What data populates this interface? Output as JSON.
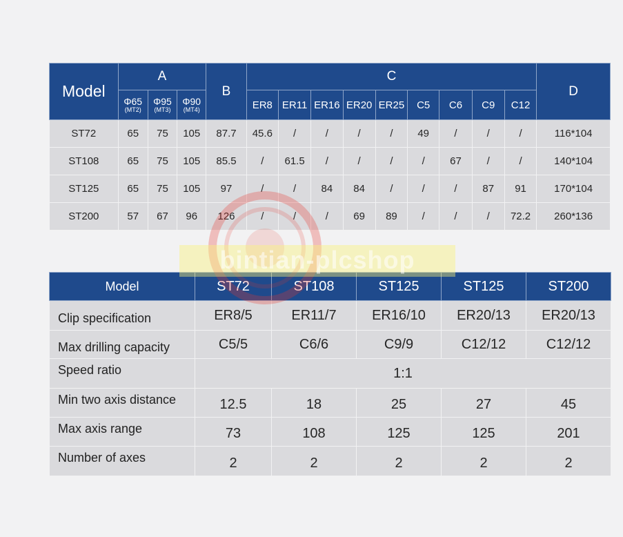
{
  "table1": {
    "model_header": "Model",
    "group_a": "A",
    "group_b": "B",
    "group_c": "C",
    "group_d": "D",
    "a_columns": [
      {
        "phi": "Φ65",
        "mt": "(MT2)"
      },
      {
        "phi": "Φ95",
        "mt": "(MT3)"
      },
      {
        "phi": "Φ90",
        "mt": "(MT4)"
      }
    ],
    "c_columns": [
      "ER8",
      "ER11",
      "ER16",
      "ER20",
      "ER25",
      "C5",
      "C6",
      "C9",
      "C12"
    ],
    "rows": [
      {
        "model": "ST72",
        "a": [
          "65",
          "75",
          "105"
        ],
        "b": "87.7",
        "c": [
          "45.6",
          "/",
          "/",
          "/",
          "/",
          "49",
          "/",
          "/",
          "/"
        ],
        "d": "116*104"
      },
      {
        "model": "ST108",
        "a": [
          "65",
          "75",
          "105"
        ],
        "b": "85.5",
        "c": [
          "/",
          "61.5",
          "/",
          "/",
          "/",
          "/",
          "67",
          "/",
          "/"
        ],
        "d": "140*104"
      },
      {
        "model": "ST125",
        "a": [
          "65",
          "75",
          "105"
        ],
        "b": "97",
        "c": [
          "/",
          "/",
          "84",
          "84",
          "/",
          "/",
          "/",
          "87",
          "91"
        ],
        "d": "170*104"
      },
      {
        "model": "ST200",
        "a": [
          "57",
          "67",
          "96"
        ],
        "b": "126",
        "c": [
          "/",
          "/",
          "/",
          "69",
          "89",
          "/",
          "/",
          "/",
          "72.2"
        ],
        "d": "260*136"
      }
    ]
  },
  "table2": {
    "model_header": "Model",
    "models": [
      "ST72",
      "ST108",
      "ST125",
      "ST125",
      "ST200"
    ],
    "rows": [
      {
        "label": "Clip specification",
        "values": [
          "ER8/5",
          "ER11/7",
          "ER16/10",
          "ER20/13",
          "ER20/13"
        ]
      },
      {
        "label": "Max drilling capacity",
        "values": [
          "C5/5",
          "C6/6",
          "C9/9",
          "C12/12",
          "C12/12"
        ]
      },
      {
        "label": "Speed ratio",
        "merged": "1:1"
      },
      {
        "label": "Min two axis distance",
        "values": [
          "12.5",
          "18",
          "25",
          "27",
          "45"
        ]
      },
      {
        "label": "Max axis range",
        "values": [
          "73",
          "108",
          "125",
          "125",
          "201"
        ]
      },
      {
        "label": "Number of axes",
        "values": [
          "2",
          "2",
          "2",
          "2",
          "2"
        ]
      }
    ]
  },
  "watermark": {
    "text": "bintian-plcshop",
    "ring_color": "#e8362d",
    "band_color": "#faf278"
  },
  "colors": {
    "header_bg": "#1f4a8c",
    "cell_bg": "#dadadd",
    "page_bg": "#f2f2f3"
  }
}
